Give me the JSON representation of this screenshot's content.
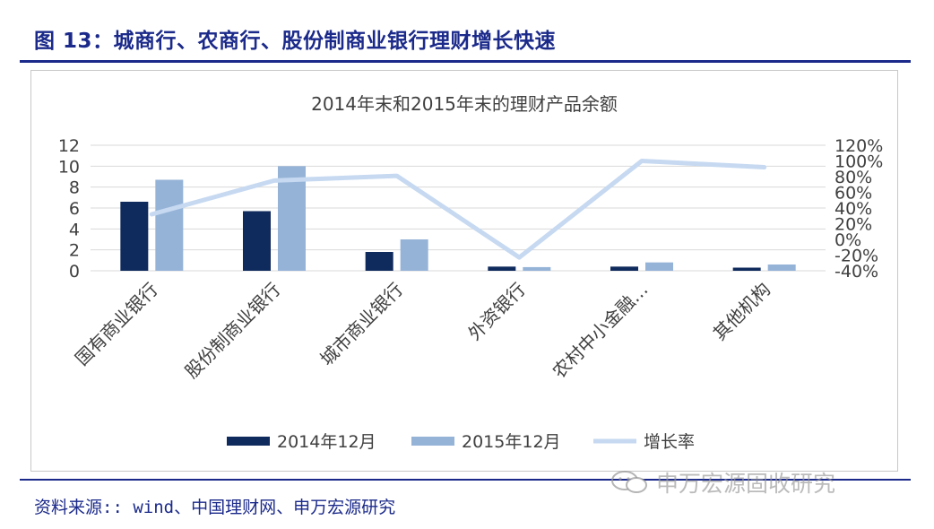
{
  "figure": {
    "title": "图 13：城商行、农商行、股份制商业银行理财增长快速",
    "source": "资料来源:: wind、中国理财网、申万宏源研究",
    "watermark": "申万宏源固收研究",
    "watermark_icon": "wechat-icon"
  },
  "chart_data": {
    "type": "bar",
    "title": "2014年末和2015年末的理财产品余额",
    "categories": [
      "国有商业银行",
      "股份制商业银行",
      "城市商业银行",
      "外资银行",
      "农村中小金融…",
      "其他机构"
    ],
    "series": [
      {
        "name": "2014年12月",
        "kind": "bar",
        "axis": "left",
        "color": "#0f2a5c",
        "values": [
          6.6,
          5.7,
          1.8,
          0.4,
          0.4,
          0.3
        ]
      },
      {
        "name": "2015年12月",
        "kind": "bar",
        "axis": "left",
        "color": "#95b3d7",
        "values": [
          8.7,
          10.0,
          3.0,
          0.35,
          0.8,
          0.6
        ]
      },
      {
        "name": "增长率",
        "kind": "line",
        "axis": "right",
        "color": "#c6d9f1",
        "values": [
          32,
          75,
          81,
          -23,
          100,
          92
        ]
      }
    ],
    "y_left": {
      "min": 0,
      "max": 12,
      "ticks": [
        "0",
        "2",
        "4",
        "6",
        "8",
        "10",
        "12"
      ]
    },
    "y_right": {
      "min": -40,
      "max": 120,
      "ticks": [
        "-40%",
        "-20%",
        "0%",
        "20%",
        "40%",
        "60%",
        "80%",
        "100%",
        "120%"
      ]
    },
    "grid": true,
    "legend": "bottom"
  }
}
